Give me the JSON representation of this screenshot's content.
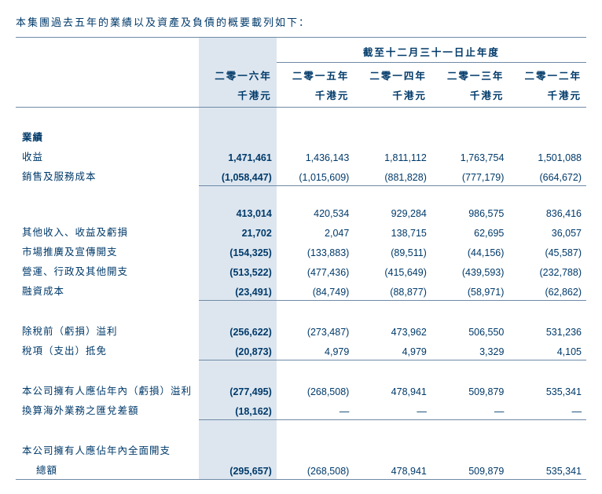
{
  "intro": "本集團過去五年的業績以及資產及負債的概要載列如下：",
  "span_header": "截至十二月三十一日止年度",
  "years": [
    "二零一六年",
    "二零一五年",
    "二零一四年",
    "二零一三年",
    "二零一二年"
  ],
  "unit": "千港元",
  "section_header": "業績",
  "rows": {
    "revenue": {
      "label": "收益",
      "v": [
        "1,471,461",
        "1,436,143",
        "1,811,112",
        "1,763,754",
        "1,501,088"
      ]
    },
    "cogs": {
      "label": "銷售及服務成本",
      "v": [
        "(1,058,447)",
        "(1,015,609)",
        "(881,828)",
        "(777,179)",
        "(664,672)"
      ]
    },
    "gross": {
      "label": "",
      "v": [
        "413,014",
        "420,534",
        "929,284",
        "986,575",
        "836,416"
      ]
    },
    "other_inc": {
      "label": "其他收入、收益及虧損",
      "v": [
        "21,702",
        "2,047",
        "138,715",
        "62,695",
        "36,057"
      ]
    },
    "mkt": {
      "label": "市場推廣及宣傳開支",
      "v": [
        "(154,325)",
        "(133,883)",
        "(89,511)",
        "(44,156)",
        "(45,587)"
      ]
    },
    "admin": {
      "label": "營運、行政及其他開支",
      "v": [
        "(513,522)",
        "(477,436)",
        "(415,649)",
        "(439,593)",
        "(232,788)"
      ]
    },
    "fin": {
      "label": "融資成本",
      "v": [
        "(23,491)",
        "(84,749)",
        "(88,877)",
        "(58,971)",
        "(62,862)"
      ]
    },
    "pbt": {
      "label": "除稅前（虧損）溢利",
      "v": [
        "(256,622)",
        "(273,487)",
        "473,962",
        "506,550",
        "531,236"
      ]
    },
    "tax": {
      "label": "稅項（支出）抵免",
      "v": [
        "(20,873)",
        "4,979",
        "4,979",
        "3,329",
        "4,105"
      ]
    },
    "attrib": {
      "label": "本公司擁有人應佔年內（虧損）溢利",
      "v": [
        "(277,495)",
        "(268,508)",
        "478,941",
        "509,879",
        "535,341"
      ]
    },
    "fx": {
      "label": "換算海外業務之匯兌差額",
      "v": [
        "(18,162)",
        "—",
        "—",
        "—",
        "—"
      ]
    },
    "compre1": {
      "label": "本公司擁有人應佔年內全面開支",
      "v": [
        "",
        "",
        "",
        "",
        ""
      ]
    },
    "compre2": {
      "label": "總額",
      "v": [
        "(295,657)",
        "(268,508)",
        "478,941",
        "509,879",
        "535,341"
      ]
    }
  },
  "colors": {
    "text": "#003a6a",
    "highlight": "#dde6ef",
    "border": "#6f8aa6"
  }
}
